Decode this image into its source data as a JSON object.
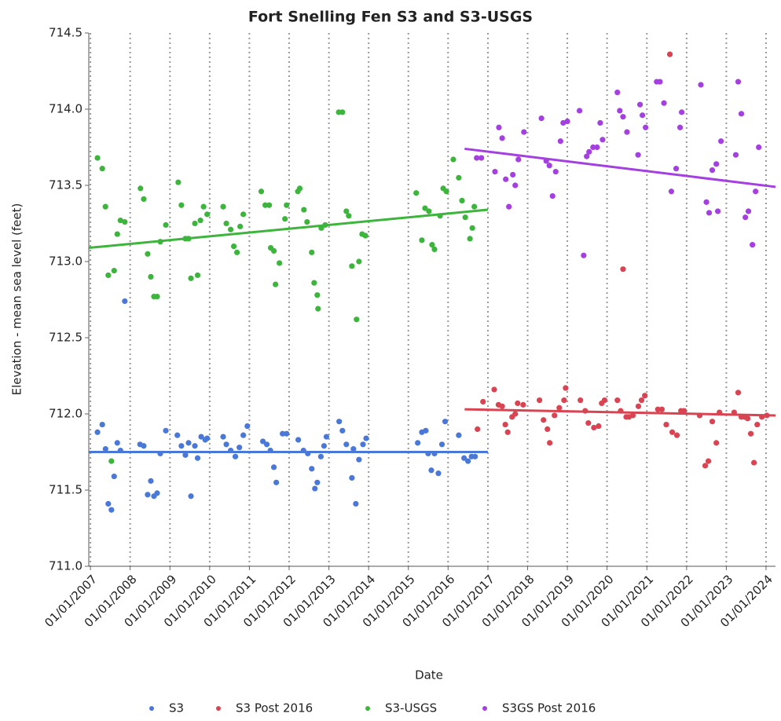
{
  "chart_data": {
    "type": "scatter",
    "title": "Fort Snelling Fen S3 and S3-USGS",
    "x_label": "Date",
    "y_label": "Elevation - mean sea level (feet)",
    "xlim": [
      "12/17/2006",
      "03/28/2024"
    ],
    "xticks": [
      "01/01/2007",
      "01/01/2008",
      "01/01/2009",
      "01/01/2010",
      "01/01/2011",
      "01/01/2012",
      "01/01/2013",
      "01/01/2014",
      "01/01/2015",
      "01/01/2016",
      "01/01/2017",
      "01/01/2018",
      "01/01/2019",
      "01/01/2020",
      "01/01/2021",
      "01/01/2022",
      "01/01/2023",
      "01/01/2024"
    ],
    "ylim": [
      711,
      714.5
    ],
    "yticks": [
      {
        "value": 711,
        "label": "711.0"
      },
      711.5,
      {
        "value": 712,
        "label": "712.0"
      },
      712.5,
      {
        "value": 713,
        "label": "713.0"
      },
      713.5,
      {
        "value": 714,
        "label": "714.0"
      },
      714.5
    ],
    "grid": "x",
    "legend": "bottom",
    "series": [
      {
        "name": "S3",
        "color": "#4a78d8",
        "x": [
          "03/07/2007",
          "04/20/2007",
          "05/20/2007",
          "06/14/2007",
          "07/13/2007",
          "08/07/2007",
          "09/05/2007",
          "10/04/2007",
          "11/13/2007",
          "04/01/2008",
          "05/05/2008",
          "06/10/2008",
          "07/09/2008",
          "08/07/2008",
          "09/05/2008",
          "10/04/2008",
          "11/24/2008",
          "03/10/2009",
          "04/16/2009",
          "05/23/2009",
          "06/21/2009",
          "07/13/2009",
          "08/18/2009",
          "09/12/2009",
          "10/15/2009",
          "11/21/2009",
          "12/09/2009",
          "05/05/2010",
          "06/03/2010",
          "07/13/2010",
          "08/25/2010",
          "10/01/2010",
          "11/06/2010",
          "12/13/2010",
          "05/05/2011",
          "06/10/2011",
          "07/13/2011",
          "08/14/2011",
          "09/05/2011",
          "11/02/2011",
          "12/09/2011",
          "03/25/2012",
          "05/12/2012",
          "06/21/2012",
          "07/27/2012",
          "08/25/2012",
          "09/16/2012",
          "10/19/2012",
          "11/17/2012",
          "12/09/2012",
          "04/05/2013",
          "05/05/2013",
          "06/10/2013",
          "07/31/2013",
          "08/14/2013",
          "09/05/2013",
          "10/04/2013",
          "11/10/2013",
          "12/09/2013",
          "03/28/2015",
          "05/05/2015",
          "06/10/2015",
          "07/02/2015",
          "07/31/2015",
          "08/29/2015",
          "10/04/2015",
          "11/06/2015",
          "12/05/2015",
          "04/08/2016",
          "05/27/2016",
          "07/02/2016",
          "08/04/2016",
          "09/05/2016"
        ],
        "values": [
          711.88,
          711.93,
          711.77,
          711.41,
          711.37,
          711.59,
          711.81,
          711.76,
          712.74,
          711.8,
          711.79,
          711.47,
          711.56,
          711.46,
          711.48,
          711.74,
          711.89,
          711.86,
          711.79,
          711.73,
          711.81,
          711.46,
          711.79,
          711.71,
          711.85,
          711.83,
          711.84,
          711.85,
          711.8,
          711.76,
          711.72,
          711.78,
          711.86,
          711.92,
          711.82,
          711.8,
          711.76,
          711.65,
          711.55,
          711.87,
          711.87,
          711.83,
          711.76,
          711.74,
          711.64,
          711.51,
          711.55,
          711.72,
          711.79,
          711.85,
          711.95,
          711.89,
          711.8,
          711.58,
          711.77,
          711.41,
          711.7,
          711.8,
          711.84,
          711.81,
          711.88,
          711.89,
          711.74,
          711.63,
          711.74,
          711.61,
          711.8,
          711.95,
          711.86,
          711.71,
          711.69,
          711.72,
          711.72
        ],
        "trend": {
          "x": [
            "12/17/2006",
            "01/01/2017"
          ],
          "y": [
            711.75,
            711.75
          ]
        }
      },
      {
        "name": "S3 Post 2016",
        "color": "#d94452",
        "x": [
          "09/27/2016",
          "11/17/2016",
          "02/28/2017",
          "04/08/2017",
          "05/12/2017",
          "06/10/2017",
          "07/02/2017",
          "08/11/2017",
          "09/09/2017",
          "10/01/2017",
          "11/21/2017",
          "04/20/2018",
          "05/27/2018",
          "07/02/2018",
          "07/23/2018",
          "09/05/2018",
          "10/19/2018",
          "12/02/2018",
          "12/16/2018",
          "05/01/2019",
          "06/14/2019",
          "07/13/2019",
          "09/02/2019",
          "10/15/2019",
          "11/13/2019",
          "12/09/2019",
          "04/05/2020",
          "05/05/2020",
          "05/27/2020",
          "06/25/2020",
          "07/20/2020",
          "08/25/2020",
          "10/15/2020",
          "11/13/2020",
          "12/13/2020",
          "04/12/2021",
          "05/19/2021",
          "06/28/2021",
          "07/31/2021",
          "08/22/2021",
          "10/04/2021",
          "11/10/2021",
          "12/09/2021",
          "05/01/2022",
          "06/21/2022",
          "07/20/2022",
          "08/25/2022",
          "10/01/2022",
          "10/30/2022",
          "03/14/2023",
          "04/20/2023",
          "05/19/2023",
          "06/18/2023",
          "07/16/2023",
          "08/14/2023",
          "09/12/2023",
          "10/12/2023",
          "11/24/2023",
          "01/08/2024"
        ],
        "values": [
          711.9,
          712.08,
          712.16,
          712.06,
          712.05,
          711.93,
          711.88,
          711.98,
          712,
          712.07,
          712.06,
          712.09,
          711.96,
          711.9,
          711.81,
          711.99,
          712.04,
          712.09,
          712.17,
          712.09,
          712.02,
          711.94,
          711.91,
          711.92,
          712.07,
          712.09,
          712.09,
          712.02,
          712.95,
          711.98,
          711.98,
          711.99,
          712.05,
          712.09,
          712.12,
          712.03,
          712.03,
          711.93,
          714.36,
          711.88,
          711.86,
          712.02,
          712.02,
          711.99,
          711.66,
          711.69,
          711.95,
          711.81,
          712.01,
          712.01,
          712.14,
          711.98,
          711.98,
          711.97,
          711.87,
          711.68,
          711.93,
          711.98,
          711.99
        ],
        "trend": {
          "x": [
            "06/01/2016",
            "03/28/2024"
          ],
          "y": [
            712.03,
            711.99
          ]
        }
      },
      {
        "name": "S3-USGS",
        "color": "#3db53d",
        "x": [
          "03/07/2007",
          "04/20/2007",
          "05/19/2007",
          "06/14/2007",
          "07/13/2007",
          "08/07/2007",
          "09/05/2007",
          "10/04/2007",
          "11/13/2007",
          "04/05/2008",
          "05/05/2008",
          "06/10/2008",
          "07/09/2008",
          "08/07/2008",
          "09/05/2008",
          "10/04/2008",
          "11/24/2008",
          "03/18/2009",
          "04/16/2009",
          "05/23/2009",
          "06/21/2009",
          "07/13/2009",
          "08/18/2009",
          "09/12/2009",
          "10/08/2009",
          "11/06/2009",
          "12/09/2009",
          "05/05/2010",
          "06/03/2010",
          "07/13/2010",
          "08/11/2010",
          "09/09/2010",
          "10/08/2010",
          "11/06/2010",
          "04/20/2011",
          "05/27/2011",
          "07/02/2011",
          "07/16/2011",
          "08/14/2011",
          "08/29/2011",
          "10/04/2011",
          "11/24/2011",
          "12/09/2011",
          "03/21/2012",
          "04/08/2012",
          "05/16/2012",
          "06/14/2012",
          "07/27/2012",
          "08/18/2012",
          "09/16/2012",
          "09/23/2012",
          "10/23/2012",
          "11/28/2012",
          "04/01/2013",
          "05/05/2013",
          "06/10/2013",
          "07/02/2013",
          "07/31/2013",
          "09/12/2013",
          "10/04/2013",
          "11/02/2013",
          "12/02/2013",
          "03/14/2015",
          "05/05/2015",
          "06/03/2015",
          "07/09/2015",
          "08/07/2015",
          "08/29/2015",
          "10/19/2015",
          "11/17/2015",
          "12/16/2015",
          "02/18/2016",
          "04/08/2016",
          "05/08/2016",
          "06/07/2016",
          "07/20/2016",
          "08/11/2016",
          "08/29/2016"
        ],
        "values": [
          713.68,
          713.61,
          713.36,
          712.91,
          711.69,
          712.94,
          713.18,
          713.27,
          713.26,
          713.48,
          713.41,
          713.05,
          712.9,
          712.77,
          712.77,
          713.13,
          713.24,
          713.52,
          713.37,
          713.15,
          713.15,
          712.89,
          713.25,
          712.91,
          713.27,
          713.36,
          713.31,
          713.36,
          713.25,
          713.21,
          713.1,
          713.06,
          713.23,
          713.31,
          713.46,
          713.37,
          713.37,
          713.09,
          713.07,
          712.85,
          712.99,
          713.28,
          713.37,
          713.46,
          713.48,
          713.34,
          713.26,
          713.06,
          712.86,
          712.78,
          712.69,
          713.22,
          713.24,
          713.98,
          713.98,
          713.33,
          713.3,
          712.97,
          712.62,
          713,
          713.18,
          713.17,
          713.45,
          713.14,
          713.35,
          713.33,
          713.11,
          713.08,
          713.3,
          713.48,
          713.46,
          713.67,
          713.55,
          713.4,
          713.29,
          713.15,
          713.22,
          713.36
        ],
        "trend": {
          "x": [
            "12/17/2006",
            "01/01/2017"
          ],
          "y": [
            713.09,
            713.34
          ]
        }
      },
      {
        "name": "S3GS Post 2016",
        "color": "#a43fe0",
        "x": [
          "09/20/2016",
          "11/02/2016",
          "03/07/2017",
          "04/12/2017",
          "05/12/2017",
          "06/14/2017",
          "07/13/2017",
          "08/18/2017",
          "09/09/2017",
          "10/08/2017",
          "11/28/2017",
          "05/08/2018",
          "06/21/2018",
          "07/20/2018",
          "08/18/2018",
          "09/16/2018",
          "10/30/2018",
          "11/24/2018",
          "01/01/2019",
          "04/23/2019",
          "05/31/2019",
          "06/28/2019",
          "07/20/2019",
          "08/25/2019",
          "10/01/2019",
          "10/30/2019",
          "11/21/2019",
          "04/05/2020",
          "04/27/2020",
          "05/27/2020",
          "07/02/2020",
          "10/12/2020",
          "10/30/2020",
          "11/21/2020",
          "12/20/2020",
          "04/01/2021",
          "05/01/2021",
          "06/07/2021",
          "08/14/2021",
          "09/27/2021",
          "11/02/2021",
          "11/17/2021",
          "05/12/2022",
          "07/02/2022",
          "07/27/2022",
          "08/25/2022",
          "10/01/2022",
          "10/15/2022",
          "11/13/2022",
          "03/29/2023",
          "04/20/2023",
          "05/19/2023",
          "06/25/2023",
          "07/23/2023",
          "08/29/2023",
          "09/27/2023",
          "10/26/2023"
        ],
        "values": [
          713.68,
          713.68,
          713.59,
          713.88,
          713.81,
          713.54,
          713.36,
          713.57,
          713.5,
          713.67,
          713.85,
          713.94,
          713.66,
          713.63,
          713.43,
          713.59,
          713.79,
          713.91,
          713.92,
          713.99,
          713.04,
          713.69,
          713.72,
          713.75,
          713.75,
          713.91,
          713.8,
          714.11,
          713.99,
          713.95,
          713.85,
          713.7,
          714.03,
          713.96,
          713.88,
          714.18,
          714.18,
          714.04,
          713.46,
          713.61,
          713.88,
          713.98,
          714.16,
          713.39,
          713.32,
          713.6,
          713.64,
          713.33,
          713.79,
          713.7,
          714.18,
          713.97,
          713.29,
          713.33,
          713.11,
          713.46,
          713.75
        ],
        "trend": {
          "x": [
            "06/01/2016",
            "03/28/2024"
          ],
          "y": [
            713.74,
            713.49
          ]
        }
      }
    ]
  }
}
